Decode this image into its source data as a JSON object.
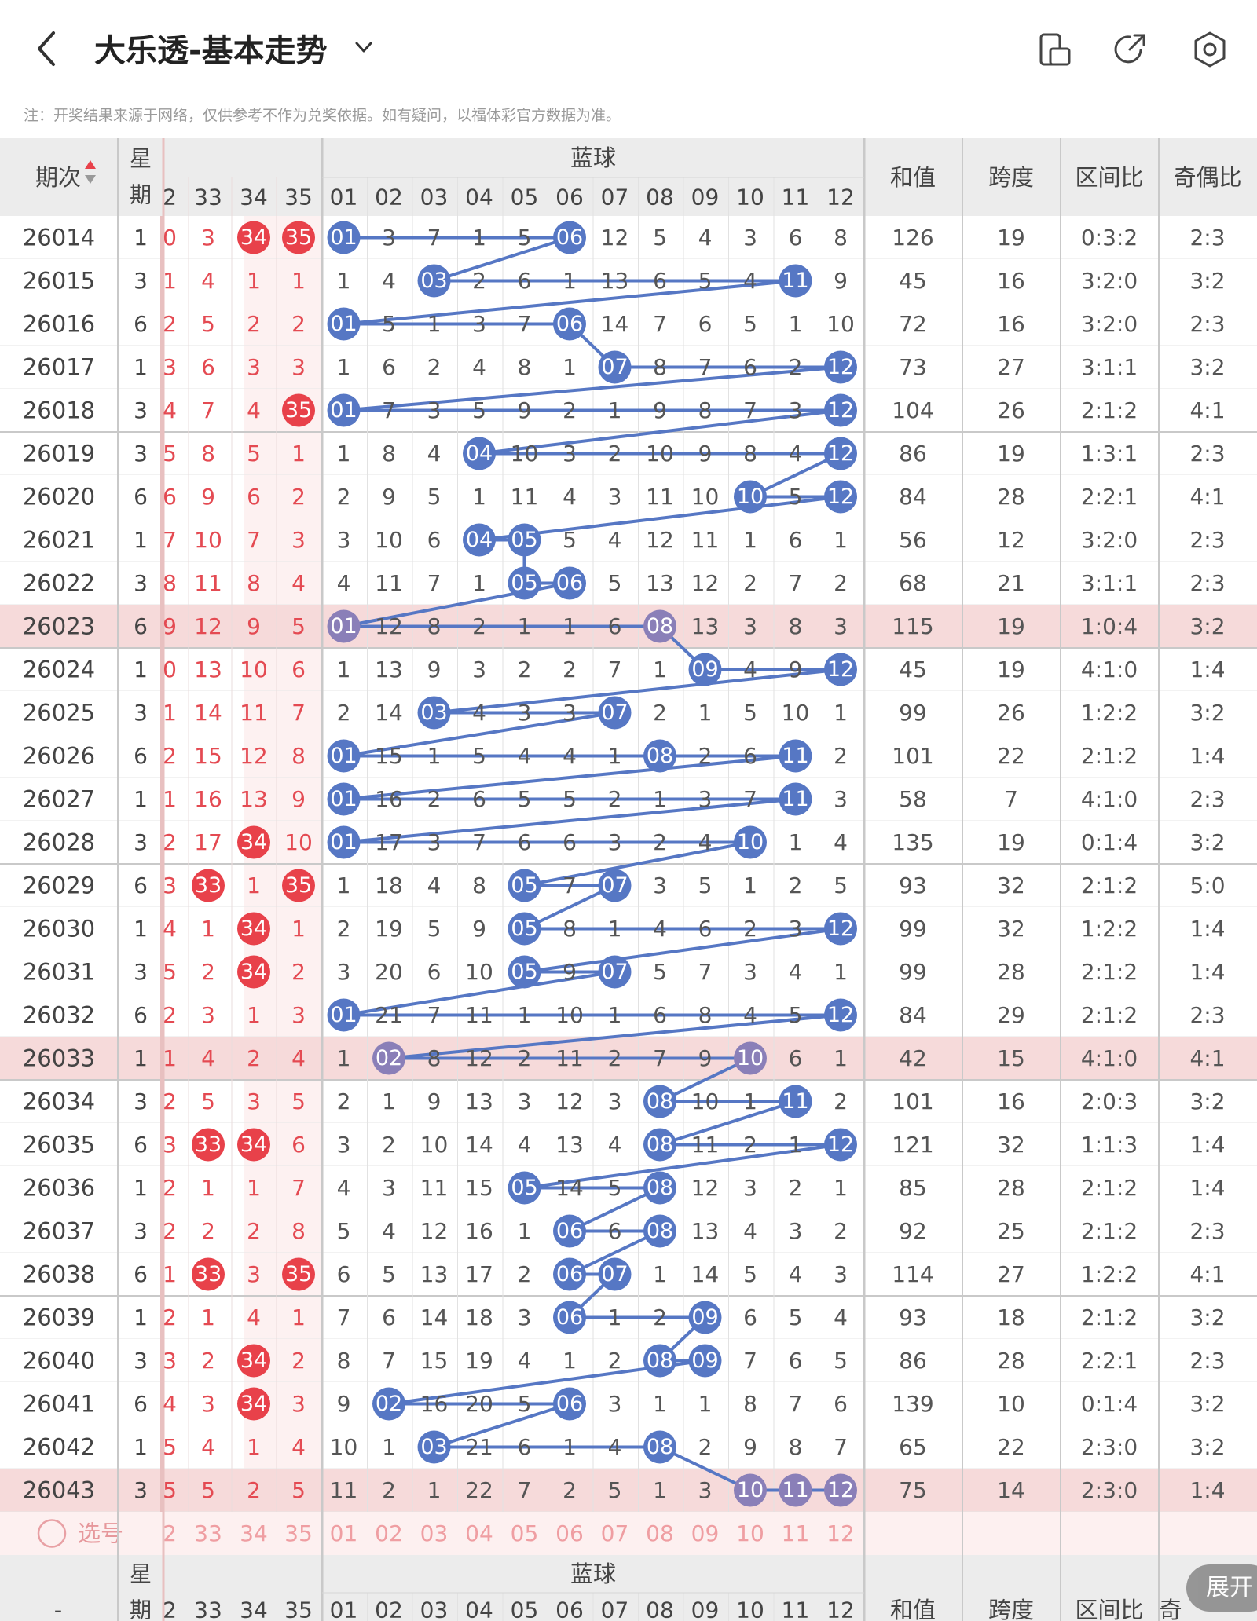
{
  "header": {
    "back_icon": "chevron-left-icon",
    "title": "大乐透-基本走势",
    "dropdown_icon": "chevron-down-icon",
    "icons": [
      "phone-layout-icon",
      "share-icon",
      "settings-icon"
    ]
  },
  "note": "注：开奖结果来源于网络，仅供参考不作为兑奖依据。如有疑问，以福体彩官方数据为准。",
  "table": {
    "headers": {
      "period": "期次",
      "weekday": "星期",
      "weekday_bottom": [
        "星",
        "期"
      ],
      "blue_group": "蓝球",
      "sum": "和值",
      "span": "跨度",
      "zone": "区间比",
      "odd_even": "奇偶比",
      "odd_even_partial": "奇",
      "period_bottom": "-"
    },
    "red_headers": [
      "2",
      "33",
      "34",
      "35"
    ],
    "blue_headers": [
      "01",
      "02",
      "03",
      "04",
      "05",
      "06",
      "07",
      "08",
      "09",
      "10",
      "11",
      "12"
    ],
    "rows": [
      {
        "period": "26014",
        "week": "1",
        "red": [
          "0",
          "3",
          "34",
          "35"
        ],
        "blue": [
          "01",
          "3",
          "7",
          "1",
          "5",
          "06",
          "12",
          "5",
          "4",
          "3",
          "6",
          "8"
        ],
        "sum": "126",
        "span": "19",
        "zone": "0:3:2",
        "oe": "2:3"
      },
      {
        "period": "26015",
        "week": "3",
        "red": [
          "1",
          "4",
          "1",
          "1"
        ],
        "blue": [
          "1",
          "4",
          "03",
          "2",
          "6",
          "1",
          "13",
          "6",
          "5",
          "4",
          "11",
          "9"
        ],
        "sum": "45",
        "span": "16",
        "zone": "3:2:0",
        "oe": "3:2"
      },
      {
        "period": "26016",
        "week": "6",
        "red": [
          "2",
          "5",
          "2",
          "2"
        ],
        "blue": [
          "01",
          "5",
          "1",
          "3",
          "7",
          "06",
          "14",
          "7",
          "6",
          "5",
          "1",
          "10"
        ],
        "sum": "72",
        "span": "16",
        "zone": "3:2:0",
        "oe": "2:3"
      },
      {
        "period": "26017",
        "week": "1",
        "red": [
          "3",
          "6",
          "3",
          "3"
        ],
        "blue": [
          "1",
          "6",
          "2",
          "4",
          "8",
          "1",
          "07",
          "8",
          "7",
          "6",
          "2",
          "12"
        ],
        "sum": "73",
        "span": "27",
        "zone": "3:1:1",
        "oe": "3:2"
      },
      {
        "period": "26018",
        "week": "3",
        "red": [
          "4",
          "7",
          "4",
          "35"
        ],
        "blue": [
          "01",
          "7",
          "3",
          "5",
          "9",
          "2",
          "1",
          "9",
          "8",
          "7",
          "3",
          "12"
        ],
        "sum": "104",
        "span": "26",
        "zone": "2:1:2",
        "oe": "4:1"
      },
      {
        "period": "26019",
        "week": "3",
        "red": [
          "5",
          "8",
          "5",
          "1"
        ],
        "blue": [
          "1",
          "8",
          "4",
          "04",
          "10",
          "3",
          "2",
          "10",
          "9",
          "8",
          "4",
          "12"
        ],
        "sum": "86",
        "span": "19",
        "zone": "1:3:1",
        "oe": "2:3"
      },
      {
        "period": "26020",
        "week": "6",
        "red": [
          "6",
          "9",
          "6",
          "2"
        ],
        "blue": [
          "2",
          "9",
          "5",
          "1",
          "11",
          "4",
          "3",
          "11",
          "10",
          "10",
          "5",
          "12"
        ],
        "sum": "84",
        "span": "28",
        "zone": "2:2:1",
        "oe": "4:1"
      },
      {
        "period": "26021",
        "week": "1",
        "red": [
          "7",
          "10",
          "7",
          "3"
        ],
        "blue": [
          "3",
          "10",
          "6",
          "04",
          "05",
          "5",
          "4",
          "12",
          "11",
          "1",
          "6",
          "1"
        ],
        "sum": "56",
        "span": "12",
        "zone": "3:2:0",
        "oe": "2:3"
      },
      {
        "period": "26022",
        "week": "3",
        "red": [
          "8",
          "11",
          "8",
          "4"
        ],
        "blue": [
          "4",
          "11",
          "7",
          "1",
          "05",
          "06",
          "5",
          "13",
          "12",
          "2",
          "7",
          "2"
        ],
        "sum": "68",
        "span": "21",
        "zone": "3:1:1",
        "oe": "2:3"
      },
      {
        "period": "26023",
        "week": "6",
        "red": [
          "9",
          "12",
          "9",
          "5"
        ],
        "blue": [
          "01",
          "12",
          "8",
          "2",
          "1",
          "1",
          "6",
          "08",
          "13",
          "3",
          "8",
          "3"
        ],
        "sum": "115",
        "span": "19",
        "zone": "1:0:4",
        "oe": "3:2"
      },
      {
        "period": "26024",
        "week": "1",
        "red": [
          "0",
          "13",
          "10",
          "6"
        ],
        "blue": [
          "1",
          "13",
          "9",
          "3",
          "2",
          "2",
          "7",
          "1",
          "09",
          "4",
          "9",
          "12"
        ],
        "sum": "45",
        "span": "19",
        "zone": "4:1:0",
        "oe": "1:4"
      },
      {
        "period": "26025",
        "week": "3",
        "red": [
          "1",
          "14",
          "11",
          "7"
        ],
        "blue": [
          "2",
          "14",
          "03",
          "4",
          "3",
          "3",
          "07",
          "2",
          "1",
          "5",
          "10",
          "1"
        ],
        "sum": "99",
        "span": "26",
        "zone": "1:2:2",
        "oe": "3:2"
      },
      {
        "period": "26026",
        "week": "6",
        "red": [
          "2",
          "15",
          "12",
          "8"
        ],
        "blue": [
          "01",
          "15",
          "1",
          "5",
          "4",
          "4",
          "1",
          "08",
          "2",
          "6",
          "11",
          "2"
        ],
        "sum": "101",
        "span": "22",
        "zone": "2:1:2",
        "oe": "1:4"
      },
      {
        "period": "26027",
        "week": "1",
        "red": [
          "1",
          "16",
          "13",
          "9"
        ],
        "blue": [
          "01",
          "16",
          "2",
          "6",
          "5",
          "5",
          "2",
          "1",
          "3",
          "7",
          "11",
          "3"
        ],
        "sum": "58",
        "span": "7",
        "zone": "4:1:0",
        "oe": "2:3"
      },
      {
        "period": "26028",
        "week": "3",
        "red": [
          "2",
          "17",
          "34",
          "10"
        ],
        "blue": [
          "01",
          "17",
          "3",
          "7",
          "6",
          "6",
          "3",
          "2",
          "4",
          "10",
          "1",
          "4"
        ],
        "sum": "135",
        "span": "19",
        "zone": "0:1:4",
        "oe": "3:2"
      },
      {
        "period": "26029",
        "week": "6",
        "red": [
          "3",
          "33",
          "1",
          "35"
        ],
        "blue": [
          "1",
          "18",
          "4",
          "8",
          "05",
          "7",
          "07",
          "3",
          "5",
          "1",
          "2",
          "5"
        ],
        "sum": "93",
        "span": "32",
        "zone": "2:1:2",
        "oe": "5:0"
      },
      {
        "period": "26030",
        "week": "1",
        "red": [
          "4",
          "1",
          "34",
          "1"
        ],
        "blue": [
          "2",
          "19",
          "5",
          "9",
          "05",
          "8",
          "1",
          "4",
          "6",
          "2",
          "3",
          "12"
        ],
        "sum": "99",
        "span": "32",
        "zone": "1:2:2",
        "oe": "1:4"
      },
      {
        "period": "26031",
        "week": "3",
        "red": [
          "5",
          "2",
          "34",
          "2"
        ],
        "blue": [
          "3",
          "20",
          "6",
          "10",
          "05",
          "9",
          "07",
          "5",
          "7",
          "3",
          "4",
          "1"
        ],
        "sum": "99",
        "span": "28",
        "zone": "2:1:2",
        "oe": "1:4"
      },
      {
        "period": "26032",
        "week": "6",
        "red": [
          "2",
          "3",
          "1",
          "3"
        ],
        "blue": [
          "01",
          "21",
          "7",
          "11",
          "1",
          "10",
          "1",
          "6",
          "8",
          "4",
          "5",
          "12"
        ],
        "sum": "84",
        "span": "29",
        "zone": "2:1:2",
        "oe": "2:3"
      },
      {
        "period": "26033",
        "week": "1",
        "red": [
          "1",
          "4",
          "2",
          "4"
        ],
        "blue": [
          "1",
          "02",
          "8",
          "12",
          "2",
          "11",
          "2",
          "7",
          "9",
          "10",
          "6",
          "1"
        ],
        "sum": "42",
        "span": "15",
        "zone": "4:1:0",
        "oe": "4:1"
      },
      {
        "period": "26034",
        "week": "3",
        "red": [
          "2",
          "5",
          "3",
          "5"
        ],
        "blue": [
          "2",
          "1",
          "9",
          "13",
          "3",
          "12",
          "3",
          "08",
          "10",
          "1",
          "11",
          "2"
        ],
        "sum": "101",
        "span": "16",
        "zone": "2:0:3",
        "oe": "3:2"
      },
      {
        "period": "26035",
        "week": "6",
        "red": [
          "3",
          "33",
          "34",
          "6"
        ],
        "blue": [
          "3",
          "2",
          "10",
          "14",
          "4",
          "13",
          "4",
          "08",
          "11",
          "2",
          "1",
          "12"
        ],
        "sum": "121",
        "span": "32",
        "zone": "1:1:3",
        "oe": "1:4"
      },
      {
        "period": "26036",
        "week": "1",
        "red": [
          "2",
          "1",
          "1",
          "7"
        ],
        "blue": [
          "4",
          "3",
          "11",
          "15",
          "05",
          "14",
          "5",
          "08",
          "12",
          "3",
          "2",
          "1"
        ],
        "sum": "85",
        "span": "28",
        "zone": "2:1:2",
        "oe": "1:4"
      },
      {
        "period": "26037",
        "week": "3",
        "red": [
          "2",
          "2",
          "2",
          "8"
        ],
        "blue": [
          "5",
          "4",
          "12",
          "16",
          "1",
          "06",
          "6",
          "08",
          "13",
          "4",
          "3",
          "2"
        ],
        "sum": "92",
        "span": "25",
        "zone": "2:1:2",
        "oe": "2:3"
      },
      {
        "period": "26038",
        "week": "6",
        "red": [
          "1",
          "33",
          "3",
          "35"
        ],
        "blue": [
          "6",
          "5",
          "13",
          "17",
          "2",
          "06",
          "07",
          "1",
          "14",
          "5",
          "4",
          "3"
        ],
        "sum": "114",
        "span": "27",
        "zone": "1:2:2",
        "oe": "4:1"
      },
      {
        "period": "26039",
        "week": "1",
        "red": [
          "2",
          "1",
          "4",
          "1"
        ],
        "blue": [
          "7",
          "6",
          "14",
          "18",
          "3",
          "06",
          "1",
          "2",
          "09",
          "6",
          "5",
          "4"
        ],
        "sum": "93",
        "span": "18",
        "zone": "2:1:2",
        "oe": "3:2"
      },
      {
        "period": "26040",
        "week": "3",
        "red": [
          "3",
          "2",
          "34",
          "2"
        ],
        "blue": [
          "8",
          "7",
          "15",
          "19",
          "4",
          "1",
          "2",
          "08",
          "09",
          "7",
          "6",
          "5"
        ],
        "sum": "86",
        "span": "28",
        "zone": "2:2:1",
        "oe": "2:3"
      },
      {
        "period": "26041",
        "week": "6",
        "red": [
          "4",
          "3",
          "34",
          "3"
        ],
        "blue": [
          "9",
          "02",
          "16",
          "20",
          "5",
          "06",
          "3",
          "1",
          "1",
          "8",
          "7",
          "6"
        ],
        "sum": "139",
        "span": "10",
        "zone": "0:1:4",
        "oe": "3:2"
      },
      {
        "period": "26042",
        "week": "1",
        "red": [
          "5",
          "4",
          "1",
          "4"
        ],
        "blue": [
          "10",
          "1",
          "03",
          "21",
          "6",
          "1",
          "4",
          "08",
          "2",
          "9",
          "8",
          "7"
        ],
        "sum": "65",
        "span": "22",
        "zone": "2:3:0",
        "oe": "3:2"
      },
      {
        "period": "26043",
        "week": "3",
        "red": [
          "5",
          "5",
          "2",
          "5"
        ],
        "blue": [
          "11",
          "2",
          "1",
          "22",
          "7",
          "2",
          "5",
          "1",
          "3",
          "10",
          "11",
          "12"
        ],
        "sum": "75",
        "span": "14",
        "zone": "2:3:0",
        "oe": "1:4"
      }
    ],
    "select_label": "选号"
  },
  "expand_button": "展开",
  "colors": {
    "red_ball": "#e8414a",
    "blue_ball": "#5677c4",
    "highlight_row": "#f6dada",
    "header_bg": "#ececec"
  }
}
